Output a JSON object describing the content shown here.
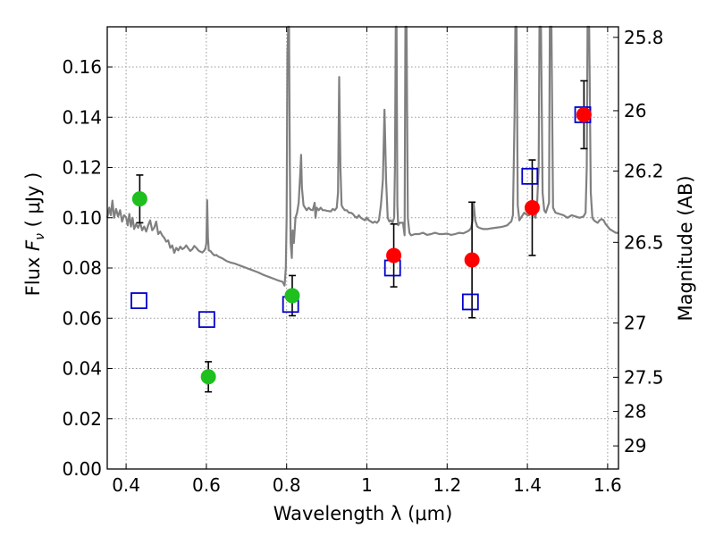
{
  "chart_data": {
    "type": "scatter",
    "title": "",
    "xlabel": "Wavelength  λ (μm)",
    "ylabel": "Flux  F_ν  ( μJy )",
    "ylabel_parts": {
      "prefix": "Flux ",
      "var_main": "F",
      "var_sub": "ν",
      "suffix": " ( μJy )"
    },
    "y2label": "Magnitude (AB)",
    "xlim": [
      0.353,
      1.627
    ],
    "ylim": [
      0.0,
      0.176
    ],
    "grid": true,
    "x_ticks": [
      0.4,
      0.6,
      0.8,
      1.0,
      1.2,
      1.4,
      1.6
    ],
    "x_tick_labels": [
      "0.4",
      "0.6",
      "0.8",
      "1",
      "1.2",
      "1.4",
      "1.6"
    ],
    "y_ticks": [
      0.0,
      0.02,
      0.04,
      0.06,
      0.08,
      0.1,
      0.12,
      0.14,
      0.16
    ],
    "y_tick_labels": [
      "0.00",
      "0.02",
      "0.04",
      "0.06",
      "0.08",
      "0.10",
      "0.12",
      "0.14",
      "0.16"
    ],
    "y2_ticks": [
      {
        "label": "25.8",
        "flux": 0.1718
      },
      {
        "label": "26",
        "flux": 0.1426
      },
      {
        "label": "26.2",
        "flux": 0.1186
      },
      {
        "label": "26.5",
        "flux": 0.0902
      },
      {
        "label": "27",
        "flux": 0.0581
      },
      {
        "label": "27.5",
        "flux": 0.0365
      },
      {
        "label": "28",
        "flux": 0.0229
      },
      {
        "label": "29",
        "flux": 0.0092
      }
    ],
    "colors": {
      "spectrum": "#808080",
      "green_points": "#1fbf1f",
      "red_points": "#ff0000",
      "model_squares": "#0000cc",
      "error_bars": "#000000",
      "grid": "#9a9a9a"
    },
    "series": [
      {
        "kind": "line",
        "points": [
          [
            0.353,
            0.1
          ],
          [
            0.358,
            0.104
          ],
          [
            0.362,
            0.101
          ],
          [
            0.366,
            0.1068
          ],
          [
            0.37,
            0.1
          ],
          [
            0.375,
            0.1035
          ],
          [
            0.38,
            0.1005
          ],
          [
            0.385,
            0.103
          ],
          [
            0.39,
            0.0985
          ],
          [
            0.395,
            0.101
          ],
          [
            0.4,
            0.1002
          ],
          [
            0.404,
            0.097
          ],
          [
            0.408,
            0.1015
          ],
          [
            0.412,
            0.0965
          ],
          [
            0.416,
            0.1
          ],
          [
            0.42,
            0.0955
          ],
          [
            0.425,
            0.0975
          ],
          [
            0.43,
            0.096
          ],
          [
            0.435,
            0.098
          ],
          [
            0.44,
            0.095
          ],
          [
            0.445,
            0.0965
          ],
          [
            0.45,
            0.0945
          ],
          [
            0.455,
            0.097
          ],
          [
            0.46,
            0.099
          ],
          [
            0.465,
            0.095
          ],
          [
            0.47,
            0.096
          ],
          [
            0.475,
            0.0985
          ],
          [
            0.48,
            0.0935
          ],
          [
            0.485,
            0.0945
          ],
          [
            0.49,
            0.093
          ],
          [
            0.495,
            0.092
          ],
          [
            0.5,
            0.0905
          ],
          [
            0.505,
            0.091
          ],
          [
            0.51,
            0.088
          ],
          [
            0.515,
            0.089
          ],
          [
            0.52,
            0.086
          ],
          [
            0.525,
            0.088
          ],
          [
            0.53,
            0.087
          ],
          [
            0.535,
            0.0885
          ],
          [
            0.54,
            0.0875
          ],
          [
            0.545,
            0.088
          ],
          [
            0.55,
            0.089
          ],
          [
            0.555,
            0.0878
          ],
          [
            0.56,
            0.0868
          ],
          [
            0.565,
            0.0875
          ],
          [
            0.57,
            0.0888
          ],
          [
            0.575,
            0.088
          ],
          [
            0.58,
            0.087
          ],
          [
            0.585,
            0.0865
          ],
          [
            0.59,
            0.0862
          ],
          [
            0.595,
            0.087
          ],
          [
            0.598,
            0.088
          ],
          [
            0.6,
            0.09
          ],
          [
            0.602,
            0.107
          ],
          [
            0.604,
            0.092
          ],
          [
            0.606,
            0.087
          ],
          [
            0.61,
            0.0868
          ],
          [
            0.615,
            0.0858
          ],
          [
            0.62,
            0.085
          ],
          [
            0.625,
            0.0852
          ],
          [
            0.63,
            0.0845
          ],
          [
            0.64,
            0.0838
          ],
          [
            0.65,
            0.0828
          ],
          [
            0.66,
            0.0822
          ],
          [
            0.67,
            0.0818
          ],
          [
            0.68,
            0.0812
          ],
          [
            0.69,
            0.0806
          ],
          [
            0.7,
            0.08
          ],
          [
            0.71,
            0.0794
          ],
          [
            0.72,
            0.0788
          ],
          [
            0.73,
            0.0782
          ],
          [
            0.74,
            0.0774
          ],
          [
            0.75,
            0.0768
          ],
          [
            0.76,
            0.0762
          ],
          [
            0.77,
            0.0756
          ],
          [
            0.78,
            0.075
          ],
          [
            0.79,
            0.0745
          ],
          [
            0.795,
            0.073
          ],
          [
            0.798,
            0.08
          ],
          [
            0.8,
            0.1
          ],
          [
            0.802,
            0.165
          ],
          [
            0.804,
            0.176
          ],
          [
            0.806,
            0.176
          ],
          [
            0.808,
            0.12
          ],
          [
            0.81,
            0.09
          ],
          [
            0.813,
            0.084
          ],
          [
            0.815,
            0.095
          ],
          [
            0.818,
            0.09
          ],
          [
            0.822,
            0.1
          ],
          [
            0.826,
            0.102
          ],
          [
            0.83,
            0.106
          ],
          [
            0.834,
            0.118
          ],
          [
            0.836,
            0.125
          ],
          [
            0.838,
            0.112
          ],
          [
            0.842,
            0.105
          ],
          [
            0.846,
            0.104
          ],
          [
            0.85,
            0.103
          ],
          [
            0.855,
            0.104
          ],
          [
            0.86,
            0.1032
          ],
          [
            0.865,
            0.103
          ],
          [
            0.87,
            0.106
          ],
          [
            0.872,
            0.1
          ],
          [
            0.875,
            0.104
          ],
          [
            0.88,
            0.103
          ],
          [
            0.885,
            0.104
          ],
          [
            0.89,
            0.103
          ],
          [
            0.895,
            0.103
          ],
          [
            0.9,
            0.1028
          ],
          [
            0.91,
            0.1025
          ],
          [
            0.915,
            0.1035
          ],
          [
            0.92,
            0.103
          ],
          [
            0.925,
            0.104
          ],
          [
            0.928,
            0.11
          ],
          [
            0.931,
            0.156
          ],
          [
            0.934,
            0.12
          ],
          [
            0.937,
            0.105
          ],
          [
            0.94,
            0.104
          ],
          [
            0.945,
            0.103
          ],
          [
            0.95,
            0.103
          ],
          [
            0.955,
            0.102
          ],
          [
            0.96,
            0.102
          ],
          [
            0.965,
            0.1015
          ],
          [
            0.97,
            0.1005
          ],
          [
            0.975,
            0.1
          ],
          [
            0.98,
            0.101
          ],
          [
            0.985,
            0.1
          ],
          [
            0.99,
            0.0995
          ],
          [
            0.995,
            0.099
          ],
          [
            1.0,
            0.1
          ],
          [
            1.005,
            0.099
          ],
          [
            1.01,
            0.0985
          ],
          [
            1.015,
            0.098
          ],
          [
            1.02,
            0.0985
          ],
          [
            1.025,
            0.098
          ],
          [
            1.03,
            0.099
          ],
          [
            1.035,
            0.105
          ],
          [
            1.04,
            0.115
          ],
          [
            1.044,
            0.143
          ],
          [
            1.048,
            0.115
          ],
          [
            1.052,
            0.1
          ],
          [
            1.056,
            0.0985
          ],
          [
            1.06,
            0.099
          ],
          [
            1.064,
            0.098
          ],
          [
            1.068,
            0.1
          ],
          [
            1.07,
            0.12
          ],
          [
            1.072,
            0.176
          ],
          [
            1.074,
            0.176
          ],
          [
            1.076,
            0.105
          ],
          [
            1.078,
            0.097
          ],
          [
            1.082,
            0.098
          ],
          [
            1.086,
            0.098
          ],
          [
            1.09,
            0.098
          ],
          [
            1.094,
            0.093
          ],
          [
            1.096,
            0.176
          ],
          [
            1.099,
            0.176
          ],
          [
            1.102,
            0.1
          ],
          [
            1.106,
            0.094
          ],
          [
            1.11,
            0.093
          ],
          [
            1.12,
            0.0935
          ],
          [
            1.13,
            0.0935
          ],
          [
            1.14,
            0.094
          ],
          [
            1.15,
            0.0932
          ],
          [
            1.16,
            0.0935
          ],
          [
            1.17,
            0.094
          ],
          [
            1.18,
            0.0935
          ],
          [
            1.19,
            0.0935
          ],
          [
            1.2,
            0.0937
          ],
          [
            1.21,
            0.0932
          ],
          [
            1.22,
            0.0935
          ],
          [
            1.23,
            0.094
          ],
          [
            1.24,
            0.0938
          ],
          [
            1.25,
            0.0945
          ],
          [
            1.255,
            0.095
          ],
          [
            1.26,
            0.096
          ],
          [
            1.263,
            0.0985
          ],
          [
            1.266,
            0.106
          ],
          [
            1.27,
            0.099
          ],
          [
            1.275,
            0.0965
          ],
          [
            1.28,
            0.096
          ],
          [
            1.29,
            0.0955
          ],
          [
            1.3,
            0.0955
          ],
          [
            1.31,
            0.0958
          ],
          [
            1.32,
            0.096
          ],
          [
            1.33,
            0.0962
          ],
          [
            1.34,
            0.0965
          ],
          [
            1.35,
            0.097
          ],
          [
            1.356,
            0.098
          ],
          [
            1.36,
            0.0985
          ],
          [
            1.364,
            0.101
          ],
          [
            1.368,
            0.14
          ],
          [
            1.37,
            0.176
          ],
          [
            1.373,
            0.176
          ],
          [
            1.376,
            0.105
          ],
          [
            1.38,
            0.099
          ],
          [
            1.384,
            0.1
          ],
          [
            1.388,
            0.101
          ],
          [
            1.392,
            0.102
          ],
          [
            1.396,
            0.1015
          ],
          [
            1.4,
            0.101
          ],
          [
            1.404,
            0.101
          ],
          [
            1.408,
            0.103
          ],
          [
            1.412,
            0.102
          ],
          [
            1.416,
            0.101
          ],
          [
            1.42,
            0.1
          ],
          [
            1.424,
            0.105
          ],
          [
            1.428,
            0.12
          ],
          [
            1.43,
            0.176
          ],
          [
            1.434,
            0.176
          ],
          [
            1.438,
            0.11
          ],
          [
            1.442,
            0.103
          ],
          [
            1.446,
            0.102
          ],
          [
            1.45,
            0.104
          ],
          [
            1.454,
            0.106
          ],
          [
            1.456,
            0.176
          ],
          [
            1.46,
            0.176
          ],
          [
            1.464,
            0.104
          ],
          [
            1.47,
            0.102
          ],
          [
            1.48,
            0.1015
          ],
          [
            1.49,
            0.101
          ],
          [
            1.5,
            0.1
          ],
          [
            1.51,
            0.101
          ],
          [
            1.52,
            0.1005
          ],
          [
            1.53,
            0.1
          ],
          [
            1.54,
            0.1005
          ],
          [
            1.545,
            0.102
          ],
          [
            1.548,
            0.12
          ],
          [
            1.55,
            0.176
          ],
          [
            1.554,
            0.176
          ],
          [
            1.558,
            0.11
          ],
          [
            1.562,
            0.1
          ],
          [
            1.566,
            0.099
          ],
          [
            1.57,
            0.0985
          ],
          [
            1.575,
            0.098
          ],
          [
            1.58,
            0.099
          ],
          [
            1.585,
            0.0995
          ],
          [
            1.59,
            0.099
          ],
          [
            1.595,
            0.0975
          ],
          [
            1.6,
            0.0965
          ],
          [
            1.605,
            0.0955
          ],
          [
            1.61,
            0.095
          ],
          [
            1.615,
            0.0945
          ],
          [
            1.62,
            0.094
          ],
          [
            1.627,
            0.094
          ]
        ]
      },
      {
        "kind": "points",
        "marker": "circle",
        "color": "green",
        "x": [
          0.434,
          0.605,
          0.814
        ],
        "y": [
          0.1075,
          0.0367,
          0.069
        ],
        "err": [
          0.0095,
          0.006,
          0.008
        ]
      },
      {
        "kind": "points",
        "marker": "circle",
        "color": "red",
        "x": [
          1.067,
          1.262,
          1.412,
          1.541
        ],
        "y": [
          0.085,
          0.0832,
          0.104,
          0.141
        ],
        "err": [
          0.0125,
          0.023,
          0.019,
          0.0135
        ]
      },
      {
        "kind": "points",
        "marker": "open-square",
        "color": "blue",
        "x": [
          0.432,
          0.601,
          0.81,
          1.064,
          1.258,
          1.406,
          1.538
        ],
        "y": [
          0.067,
          0.0595,
          0.0655,
          0.08,
          0.0665,
          0.1165,
          0.141
        ]
      }
    ]
  }
}
